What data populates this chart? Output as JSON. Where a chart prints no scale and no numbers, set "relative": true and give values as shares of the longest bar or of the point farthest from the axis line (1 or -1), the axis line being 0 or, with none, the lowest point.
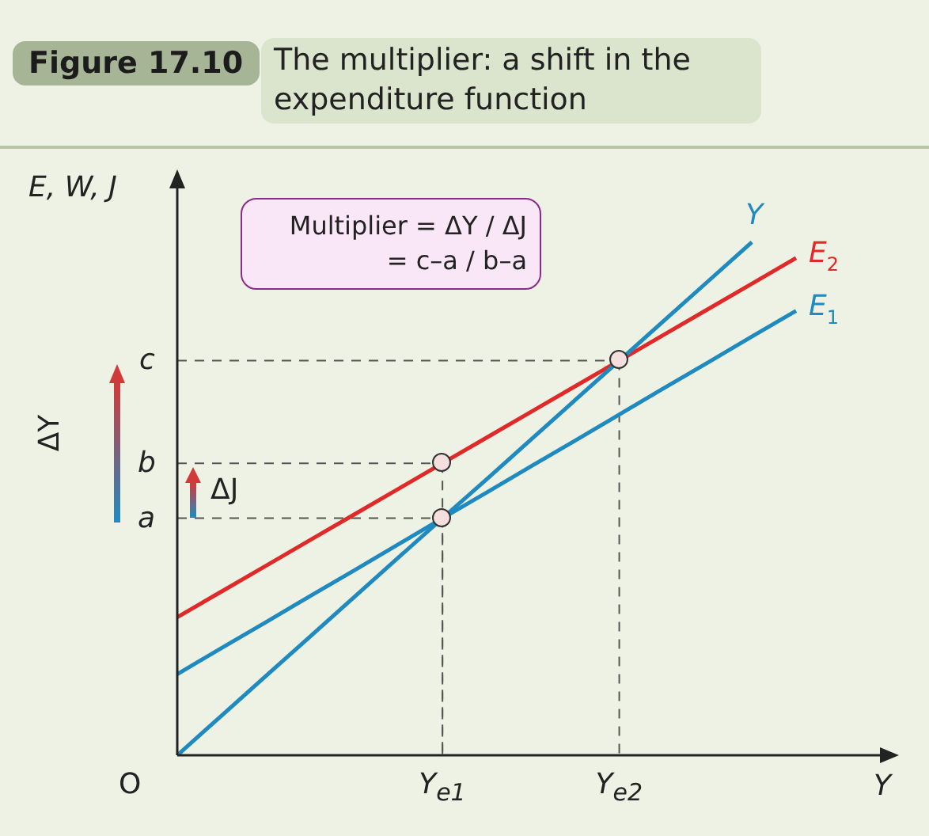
{
  "chart_data": {
    "type": "line",
    "title": "Figure 17.10",
    "subtitle": "The multiplier: a shift in the expenditure function",
    "xlabel": "Y",
    "ylabel": "E, W, J",
    "relative": true,
    "grid": false,
    "legend": false,
    "categories": [
      null,
      null,
      null,
      null,
      null,
      null,
      null,
      null,
      null,
      null,
      null,
      null,
      null,
      null,
      null
    ],
    "series": [
      {
        "name": "Y",
        "color": "#1f8ac0",
        "values": [
          0,
          0.077,
          0.154,
          0.231,
          0.308,
          0.385,
          0.462,
          0.538,
          0.615,
          0.692,
          0.769,
          0.846,
          0.923,
          1,
          null
        ]
      },
      {
        "name": "E$_{1}$",
        "color": "#1f8ac0",
        "values": [
          0.158,
          0.209,
          0.259,
          0.31,
          0.36,
          0.411,
          0.462,
          0.512,
          0.563,
          0.613,
          0.664,
          0.715,
          0.765,
          0.816,
          0.866
        ]
      },
      {
        "name": "E$_{2}$",
        "color": "#e02a2a",
        "values": [
          0.269,
          0.319,
          0.369,
          0.419,
          0.469,
          0.519,
          0.569,
          0.619,
          0.669,
          0.719,
          0.769,
          0.819,
          0.869,
          0.919,
          0.969
        ]
      }
    ],
    "annotations": [
      "Multiplier = ΔY / ΔJ\n= c–a / b–a",
      "O",
      "ΔY",
      "ΔJ",
      "a",
      "b",
      "c",
      "Y$_{e1}$",
      "Y$_{e2}$"
    ]
  }
}
